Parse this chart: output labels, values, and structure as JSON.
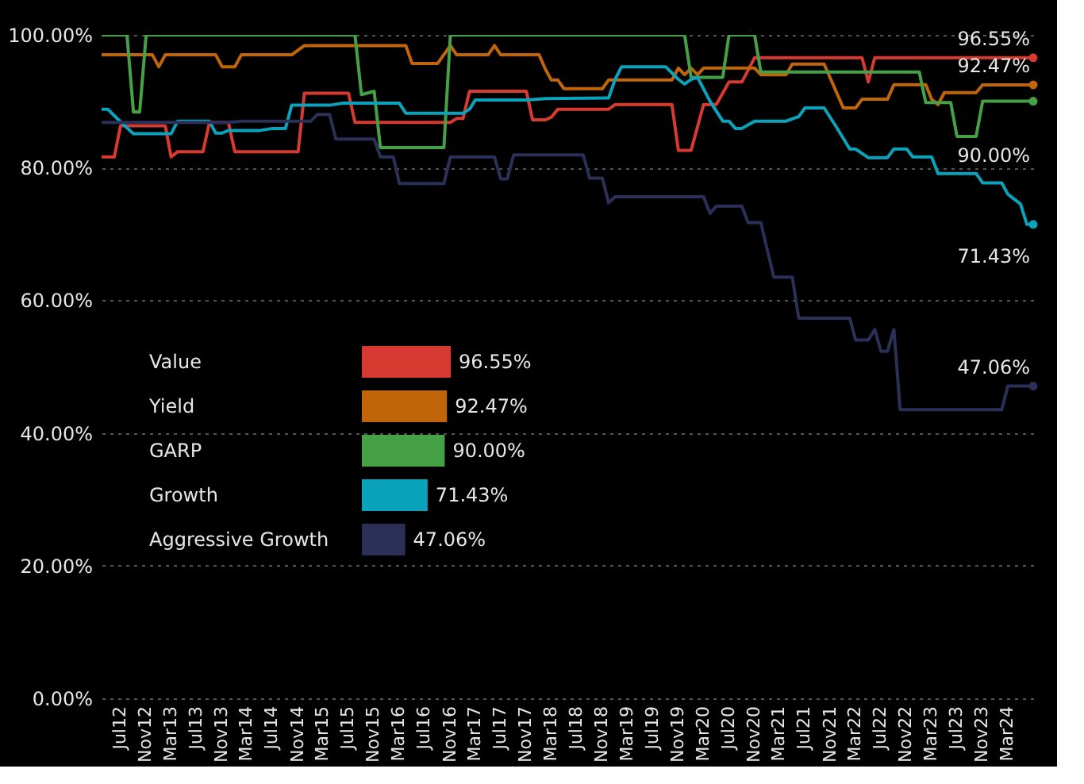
{
  "chart_data": [
    {
      "type": "line",
      "xlim": [
        "2012-04",
        "2024-07"
      ],
      "xticks": [
        {
          "value": "2012-07",
          "label": "Jul12"
        },
        {
          "value": "2012-11",
          "label": "Nov12"
        },
        {
          "value": "2013-03",
          "label": "Mar13"
        },
        {
          "value": "2013-07",
          "label": "Jul13"
        },
        {
          "value": "2013-11",
          "label": "Nov13"
        },
        {
          "value": "2014-03",
          "label": "Mar14"
        },
        {
          "value": "2014-07",
          "label": "Jul14"
        },
        {
          "value": "2014-11",
          "label": "Nov14"
        },
        {
          "value": "2015-03",
          "label": "Mar15"
        },
        {
          "value": "2015-07",
          "label": "Jul15"
        },
        {
          "value": "2015-11",
          "label": "Nov15"
        },
        {
          "value": "2016-03",
          "label": "Mar16"
        },
        {
          "value": "2016-07",
          "label": "Jul16"
        },
        {
          "value": "2016-11",
          "label": "Nov16"
        },
        {
          "value": "2017-03",
          "label": "Mar17"
        },
        {
          "value": "2017-07",
          "label": "Jul17"
        },
        {
          "value": "2017-11",
          "label": "Nov17"
        },
        {
          "value": "2018-03",
          "label": "Mar18"
        },
        {
          "value": "2018-07",
          "label": "Jul18"
        },
        {
          "value": "2018-11",
          "label": "Nov18"
        },
        {
          "value": "2019-03",
          "label": "Mar19"
        },
        {
          "value": "2019-07",
          "label": "Jul19"
        },
        {
          "value": "2019-11",
          "label": "Nov19"
        },
        {
          "value": "2020-03",
          "label": "Mar20"
        },
        {
          "value": "2020-07",
          "label": "Jul20"
        },
        {
          "value": "2020-11",
          "label": "Nov20"
        },
        {
          "value": "2021-03",
          "label": "Mar21"
        },
        {
          "value": "2021-07",
          "label": "Jul21"
        },
        {
          "value": "2021-11",
          "label": "Nov21"
        },
        {
          "value": "2022-03",
          "label": "Mar22"
        },
        {
          "value": "2022-07",
          "label": "Jul22"
        },
        {
          "value": "2022-11",
          "label": "Nov22"
        },
        {
          "value": "2023-03",
          "label": "Mar23"
        },
        {
          "value": "2023-07",
          "label": "Jul23"
        },
        {
          "value": "2023-11",
          "label": "Nov23"
        },
        {
          "value": "2024-03",
          "label": "Mar24"
        }
      ],
      "ylim": [
        0,
        100
      ],
      "yticks": [
        {
          "value": 0,
          "label": "0.00%"
        },
        {
          "value": 20,
          "label": "20.00%"
        },
        {
          "value": 40,
          "label": "40.00%"
        },
        {
          "value": 60,
          "label": "60.00%"
        },
        {
          "value": 80,
          "label": "80.00%"
        },
        {
          "value": 100,
          "label": "100.00%"
        }
      ],
      "grid": "y",
      "marker": "none",
      "line_style": "solid",
      "series": [
        {
          "color": "#d63a30",
          "x": [
            "2012-04",
            "2012-06",
            "2012-07",
            "2013-02",
            "2013-03",
            "2013-04",
            "2013-08",
            "2013-09",
            "2013-12",
            "2014-01",
            "2014-11",
            "2014-12",
            "2015-07",
            "2015-08",
            "2016-11",
            "2016-12",
            "2017-01",
            "2017-02",
            "2017-11",
            "2017-12",
            "2018-02",
            "2018-03",
            "2018-04",
            "2018-05",
            "2018-12",
            "2019-01",
            "2019-10",
            "2019-11",
            "2020-01",
            "2020-03",
            "2020-05",
            "2020-07",
            "2020-09",
            "2020-11",
            "2022-04",
            "2022-05",
            "2022-06",
            "2024-07"
          ],
          "values": [
            81.6,
            81.6,
            86.3,
            86.3,
            81.6,
            82.4,
            82.4,
            86.8,
            86.8,
            82.4,
            82.4,
            91.2,
            91.2,
            86.8,
            86.8,
            87.4,
            87.4,
            91.5,
            91.5,
            87.2,
            87.2,
            87.6,
            88.8,
            88.8,
            88.8,
            89.5,
            89.5,
            82.6,
            82.6,
            89.5,
            89.5,
            92.9,
            92.9,
            96.55,
            96.55,
            92.9,
            96.55,
            96.55
          ]
        },
        {
          "color": "#c0650a",
          "x": [
            "2012-04",
            "2012-12",
            "2013-01",
            "2013-02",
            "2013-10",
            "2013-11",
            "2014-01",
            "2014-02",
            "2014-10",
            "2014-12",
            "2016-04",
            "2016-05",
            "2016-09",
            "2016-11",
            "2016-12",
            "2017-05",
            "2017-06",
            "2017-07",
            "2018-01",
            "2018-02",
            "2018-03",
            "2018-04",
            "2018-05",
            "2018-11",
            "2018-12",
            "2019-10",
            "2019-11",
            "2019-12",
            "2020-01",
            "2020-02",
            "2020-03",
            "2020-11",
            "2020-12",
            "2021-04",
            "2021-05",
            "2021-10",
            "2022-01",
            "2022-03",
            "2022-04",
            "2022-08",
            "2022-09",
            "2023-02",
            "2023-03",
            "2023-04",
            "2023-05",
            "2023-10",
            "2023-11",
            "2024-07"
          ],
          "values": [
            97,
            97,
            95.2,
            97,
            97,
            95.2,
            95.2,
            97,
            97,
            98.4,
            98.4,
            95.7,
            95.7,
            98.4,
            97,
            97,
            98.4,
            97,
            97,
            94.8,
            93.2,
            93.2,
            91.9,
            91.9,
            93.2,
            93.2,
            95,
            94,
            95,
            94,
            95,
            95,
            94,
            94,
            95.6,
            95.6,
            89,
            89,
            90.3,
            90.3,
            92.5,
            92.5,
            90.3,
            89.5,
            91.3,
            91.3,
            92.47,
            92.47
          ]
        },
        {
          "color": "#45a046",
          "x": [
            "2012-04",
            "2012-08",
            "2012-09",
            "2012-10",
            "2012-11",
            "2015-08",
            "2015-09",
            "2015-11",
            "2015-12",
            "2016-10",
            "2016-11",
            "2019-12",
            "2020-01",
            "2020-06",
            "2020-07",
            "2020-11",
            "2020-12",
            "2023-01",
            "2023-02",
            "2023-06",
            "2023-07",
            "2023-10",
            "2023-11",
            "2024-07"
          ],
          "values": [
            100,
            100,
            88.4,
            88.4,
            100,
            100,
            91,
            91.5,
            83,
            83,
            100,
            100,
            93.6,
            93.6,
            100,
            100,
            94.4,
            94.4,
            89.8,
            89.8,
            84.7,
            84.7,
            90,
            90
          ]
        },
        {
          "color": "#0aa3bb",
          "x": [
            "2012-04",
            "2012-05",
            "2012-07",
            "2012-09",
            "2013-03",
            "2013-04",
            "2013-09",
            "2013-10",
            "2013-11",
            "2013-12",
            "2014-05",
            "2014-07",
            "2014-09",
            "2014-10",
            "2015-04",
            "2015-06",
            "2016-03",
            "2016-04",
            "2017-01",
            "2017-02",
            "2017-03",
            "2017-11",
            "2018-02",
            "2018-12",
            "2019-01",
            "2019-02",
            "2019-09",
            "2019-11",
            "2019-12",
            "2020-01",
            "2020-02",
            "2020-04",
            "2020-06",
            "2020-07",
            "2020-08",
            "2020-09",
            "2020-11",
            "2021-04",
            "2021-06",
            "2021-07",
            "2021-10",
            "2021-12",
            "2022-02",
            "2022-03",
            "2022-05",
            "2022-08",
            "2022-09",
            "2022-11",
            "2022-12",
            "2023-03",
            "2023-04",
            "2023-10",
            "2023-11",
            "2024-02",
            "2024-03",
            "2024-05",
            "2024-06",
            "2024-07"
          ],
          "values": [
            88.8,
            88.8,
            86.9,
            85.1,
            85.1,
            87,
            87,
            85.2,
            85.2,
            85.6,
            85.6,
            85.9,
            85.9,
            89.4,
            89.4,
            89.7,
            89.7,
            88.2,
            88.2,
            88.8,
            90.2,
            90.2,
            90.4,
            90.5,
            93.3,
            95.2,
            95.2,
            93.3,
            92.6,
            93.3,
            93.6,
            90,
            87,
            87,
            85.9,
            85.9,
            87,
            87,
            87.7,
            89,
            89,
            86,
            82.8,
            82.8,
            81.5,
            81.5,
            82.8,
            82.8,
            81.6,
            81.6,
            79.1,
            79.1,
            77.7,
            77.7,
            76,
            74.5,
            71.43,
            71.43
          ]
        },
        {
          "color": "#2a3058",
          "x": [
            "2012-04",
            "2013-12",
            "2014-02",
            "2015-01",
            "2015-02",
            "2015-04",
            "2015-05",
            "2015-11",
            "2015-12",
            "2016-02",
            "2016-03",
            "2016-10",
            "2016-11",
            "2017-06",
            "2017-07",
            "2017-08",
            "2017-09",
            "2018-08",
            "2018-09",
            "2018-11",
            "2018-12",
            "2019-01",
            "2020-03",
            "2020-04",
            "2020-05",
            "2020-09",
            "2020-10",
            "2020-12",
            "2021-02",
            "2021-05",
            "2021-06",
            "2022-02",
            "2022-03",
            "2022-05",
            "2022-06",
            "2022-07",
            "2022-08",
            "2022-09",
            "2022-10",
            "2024-02",
            "2024-03",
            "2024-07"
          ],
          "values": [
            86.8,
            86.8,
            87,
            87,
            88,
            88,
            84.3,
            84.3,
            81.6,
            81.6,
            77.6,
            77.6,
            81.6,
            81.6,
            78.3,
            78.3,
            81.9,
            81.9,
            78.4,
            78.4,
            74.7,
            75.6,
            75.6,
            73.1,
            74.2,
            74.2,
            71.7,
            71.7,
            63.5,
            63.5,
            57.3,
            57.3,
            54,
            54,
            55.6,
            52.3,
            52.3,
            55.6,
            43.5,
            43.5,
            47.06,
            47.06
          ]
        }
      ],
      "annotations": [
        {
          "text": "96.55%",
          "x": "2024-07",
          "y": 96.55
        },
        {
          "text": "92.47%",
          "x": "2024-07",
          "y": 92.47
        },
        {
          "text": "90.00%",
          "x": "2024-07",
          "y": 90
        },
        {
          "text": "71.43%",
          "x": "2024-07",
          "y": 71.43
        },
        {
          "text": "47.06%",
          "x": "2024-07",
          "y": 47.06
        }
      ]
    },
    {
      "type": "bar",
      "orientation": "horizontal",
      "categories": [
        "Value",
        "Yield",
        "GARP",
        "Growth",
        "Aggressive Growth"
      ],
      "values": [
        96.55,
        92.47,
        90.0,
        71.43,
        47.06
      ],
      "colors": [
        "#d63a30",
        "#c0650a",
        "#45a046",
        "#0aa3bb",
        "#2a3058"
      ],
      "value_labels": [
        "96.55%",
        "92.47%",
        "90.00%",
        "71.43%",
        "47.06%"
      ]
    }
  ]
}
